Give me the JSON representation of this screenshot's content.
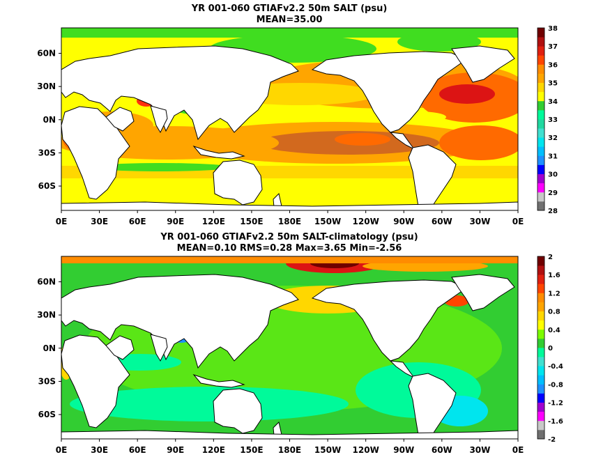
{
  "chart_data": [
    {
      "type": "heatmap",
      "title": "YR 001-060 GTIAFv2.2 50m SALT (psu)",
      "subtitle": "MEAN=35.00",
      "x_ticks": [
        "0E",
        "30E",
        "60E",
        "90E",
        "120E",
        "150E",
        "180E",
        "150W",
        "120W",
        "90W",
        "60W",
        "30W",
        "0E"
      ],
      "y_ticks": [
        "60N",
        "30N",
        "0N",
        "30S",
        "60S"
      ],
      "colorbar_labels": [
        "38",
        "37",
        "36",
        "35",
        "34",
        "33",
        "32",
        "31",
        "30",
        "29",
        "28"
      ],
      "colors": [
        "#ffffff",
        "#707070",
        "#c8c8c8",
        "#ff00ff",
        "#a000d0",
        "#1010ff",
        "#1e90ff",
        "#00c8ff",
        "#40e0c8",
        "#00ff70",
        "#40dd20",
        "#ffff00",
        "#ffd700",
        "#ffa500",
        "#ff6a00",
        "#ff3010",
        "#dc1414",
        "#b01010",
        "#700000"
      ],
      "colorbar_levels": [
        28,
        28.5,
        29,
        29.5,
        30,
        30.5,
        31,
        31.5,
        32,
        32.5,
        33,
        33.5,
        34,
        34.5,
        35,
        35.5,
        36,
        36.5,
        37,
        37.5,
        38
      ],
      "colorbar_colors": [
        "#707070",
        "#c8c8c8",
        "#ff00ff",
        "#a000d0",
        "#0000ff",
        "#1e90ff",
        "#00bfff",
        "#00e5ee",
        "#40e0d0",
        "#20d8a0",
        "#00fa9a",
        "#32cd32",
        "#ffff00",
        "#ffd700",
        "#ffa500",
        "#ff8c00",
        "#ff4500",
        "#e02010",
        "#b01010",
        "#700000"
      ]
    },
    {
      "type": "heatmap",
      "title": "YR 001-060 GTIAFv2.2 50m SALT-climatology (psu)",
      "subtitle": "MEAN=0.10   RMS=0.28   Max=3.65   Min=-2.56",
      "x_ticks": [
        "0E",
        "30E",
        "60E",
        "90E",
        "120E",
        "150E",
        "180E",
        "150W",
        "120W",
        "90W",
        "60W",
        "30W",
        "0E"
      ],
      "y_ticks": [
        "60N",
        "30N",
        "0N",
        "30S",
        "60S"
      ],
      "colorbar_labels": [
        "2",
        "1.6",
        "1.2",
        "0.8",
        "0.4",
        "0",
        "-0.4",
        "-0.8",
        "-1.2",
        "-1.6",
        "-2"
      ],
      "colorbar_levels": [
        -2,
        -1.8,
        -1.6,
        -1.4,
        -1.2,
        -1,
        -0.8,
        -0.6,
        -0.4,
        -0.2,
        0,
        0.2,
        0.4,
        0.6,
        0.8,
        1,
        1.2,
        1.4,
        1.6,
        1.8,
        2
      ],
      "colorbar_colors": [
        "#707070",
        "#c8c8c8",
        "#ff00ff",
        "#a000d0",
        "#0000ff",
        "#1e90ff",
        "#00bfff",
        "#00e5ee",
        "#40e0d0",
        "#00fa9a",
        "#32cd32",
        "#7cfc00",
        "#ffff00",
        "#ffd700",
        "#ffa500",
        "#ff8c00",
        "#ff4500",
        "#e02010",
        "#b01010",
        "#700000"
      ]
    }
  ]
}
